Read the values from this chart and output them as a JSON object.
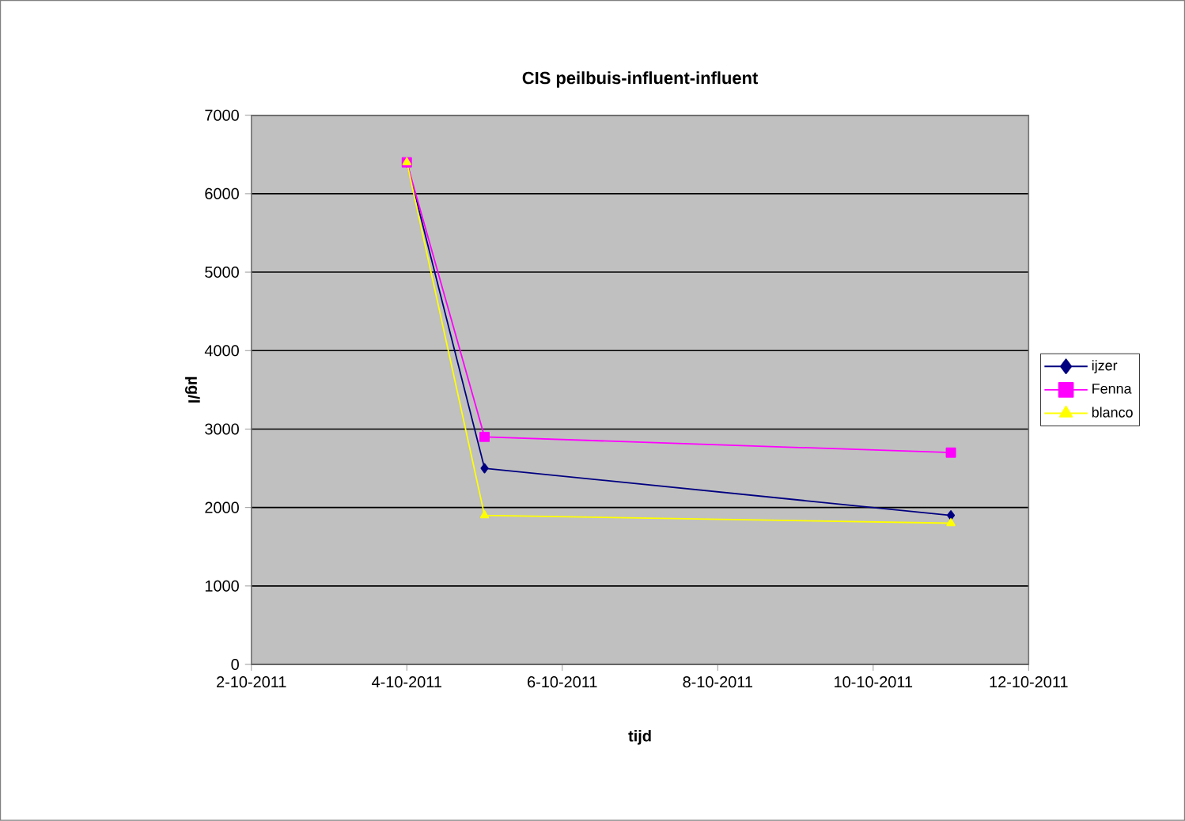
{
  "chart_data": {
    "type": "line",
    "title": "CIS peilbuis-influent-influent",
    "xlabel": "tijd",
    "ylabel": "µg/l",
    "x": [
      "2011-10-04",
      "2011-10-05",
      "2011-10-11"
    ],
    "series": [
      {
        "name": "ijzer",
        "color": "#000080",
        "marker": "diamond",
        "values": [
          6400,
          2500,
          1900
        ]
      },
      {
        "name": "Fenna",
        "color": "#ff00ff",
        "marker": "square",
        "values": [
          6400,
          2900,
          2700
        ]
      },
      {
        "name": "blanco",
        "color": "#ffff00",
        "marker": "triangle",
        "values": [
          6400,
          1900,
          1800
        ]
      }
    ],
    "xlim": [
      "2011-10-02",
      "2011-10-12"
    ],
    "xticks": [
      {
        "value": "2011-10-02",
        "label": "2-10-2011"
      },
      {
        "value": "2011-10-04",
        "label": "4-10-2011"
      },
      {
        "value": "2011-10-06",
        "label": "6-10-2011"
      },
      {
        "value": "2011-10-08",
        "label": "8-10-2011"
      },
      {
        "value": "2011-10-10",
        "label": "10-10-2011"
      },
      {
        "value": "2011-10-12",
        "label": "12-10-2011"
      }
    ],
    "ylim": [
      0,
      7000
    ],
    "yticks": [
      0,
      1000,
      2000,
      3000,
      4000,
      5000,
      6000,
      7000
    ],
    "grid": "y",
    "legend": "right",
    "line_style": "solid"
  }
}
